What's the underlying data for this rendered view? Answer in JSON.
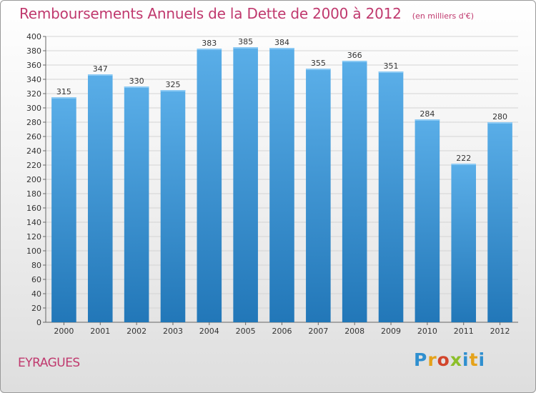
{
  "chart_data": {
    "type": "bar",
    "title": "Remboursements Annuels de la Dette de 2000 à 2012",
    "unit": "(en milliers d'€)",
    "categories": [
      "2000",
      "2001",
      "2002",
      "2003",
      "2004",
      "2005",
      "2006",
      "2007",
      "2008",
      "2009",
      "2010",
      "2011",
      "2012"
    ],
    "values": [
      315,
      347,
      330,
      325,
      383,
      385,
      384,
      355,
      366,
      351,
      284,
      222,
      280
    ],
    "ylim": [
      0,
      400
    ],
    "yticks": [
      0,
      20,
      40,
      60,
      80,
      100,
      120,
      140,
      160,
      180,
      200,
      220,
      240,
      260,
      280,
      300,
      320,
      340,
      360,
      380,
      400
    ],
    "grid": true,
    "bar_color_top": "#5aaee8",
    "bar_color_bottom": "#2277b8"
  },
  "location": "EYRAGUES",
  "brand": [
    "P",
    "r",
    "o",
    "x",
    "i",
    "t",
    "i"
  ],
  "colors": {
    "title": "#c0396e"
  }
}
